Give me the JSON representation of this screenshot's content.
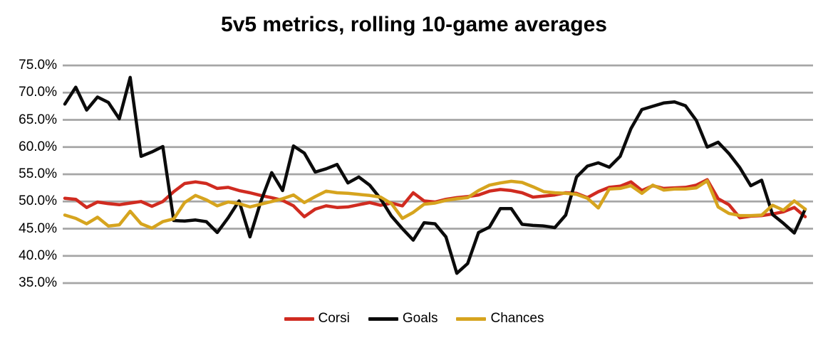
{
  "header": {
    "title": "5v5 metrics, rolling 10-game averages"
  },
  "chart_data": {
    "type": "line",
    "title": "5v5 metrics, rolling 10-game averages",
    "x_axis_labels": "none",
    "x_description": "rolling 10-game windows across the season (no tick labels shown)",
    "ylim": [
      35,
      75
    ],
    "grid": "horizontal gray lines every 5%",
    "legend_position": "bottom-center",
    "y_ticks": [
      {
        "value": 75,
        "label": "75.0%"
      },
      {
        "value": 70,
        "label": "70.0%"
      },
      {
        "value": 65,
        "label": "65.0%"
      },
      {
        "value": 60,
        "label": "60.0%"
      },
      {
        "value": 55,
        "label": "55.0%"
      },
      {
        "value": 50,
        "label": "50.0%"
      },
      {
        "value": 45,
        "label": "45.0%"
      },
      {
        "value": 40,
        "label": "40.0%"
      },
      {
        "value": 35,
        "label": "35.0%"
      }
    ],
    "series": [
      {
        "name": "Corsi",
        "color": "#D02B20",
        "values": [
          50.6,
          50.4,
          48.9,
          49.9,
          49.6,
          49.4,
          49.7,
          50.0,
          49.1,
          50.0,
          51.8,
          53.3,
          53.6,
          53.3,
          52.4,
          52.6,
          52.0,
          51.6,
          51.1,
          50.7,
          50.2,
          49.2,
          47.2,
          48.6,
          49.2,
          48.9,
          49.0,
          49.4,
          49.8,
          49.3,
          49.7,
          49.2,
          51.6,
          50.1,
          49.9,
          50.4,
          50.7,
          50.9,
          51.2,
          51.9,
          52.2,
          52.0,
          51.6,
          50.8,
          51.0,
          51.2,
          51.6,
          51.5,
          50.7,
          51.8,
          52.6,
          52.8,
          53.6,
          52.0,
          52.9,
          52.4,
          52.5,
          52.6,
          53.0,
          54.0,
          50.5,
          49.4,
          47.0,
          47.3,
          47.4,
          47.7,
          48.1,
          48.9,
          47.2
        ]
      },
      {
        "name": "Goals",
        "color": "#0B0B0B",
        "values": [
          67.9,
          71.0,
          66.8,
          69.2,
          68.2,
          65.2,
          72.8,
          58.3,
          59.1,
          60.1,
          46.5,
          46.4,
          46.6,
          46.3,
          44.3,
          47.0,
          50.1,
          43.5,
          50.0,
          55.3,
          52.0,
          60.2,
          58.9,
          55.4,
          56.0,
          56.8,
          53.4,
          54.5,
          53.0,
          50.5,
          47.3,
          45.0,
          42.9,
          46.1,
          45.9,
          43.5,
          36.8,
          38.6,
          44.3,
          45.3,
          48.7,
          48.7,
          45.8,
          45.6,
          45.5,
          45.2,
          47.5,
          54.5,
          56.5,
          57.1,
          56.3,
          58.3,
          63.4,
          66.9,
          67.5,
          68.1,
          68.3,
          67.6,
          64.9,
          60.0,
          60.9,
          58.8,
          56.2,
          52.9,
          53.9,
          47.6,
          46.0,
          44.2,
          48.6
        ]
      },
      {
        "name": "Chances",
        "color": "#D6A41E",
        "values": [
          47.5,
          46.9,
          45.9,
          47.1,
          45.5,
          45.7,
          48.2,
          45.9,
          45.1,
          46.3,
          46.8,
          49.8,
          51.1,
          50.3,
          49.2,
          49.9,
          49.6,
          49.0,
          49.5,
          50.0,
          50.5,
          51.2,
          49.8,
          50.9,
          51.9,
          51.6,
          51.5,
          51.3,
          51.1,
          50.8,
          49.6,
          46.9,
          48.0,
          49.5,
          49.7,
          50.2,
          50.5,
          50.7,
          52.0,
          53.0,
          53.4,
          53.7,
          53.5,
          52.7,
          51.8,
          51.6,
          51.5,
          51.3,
          50.6,
          48.8,
          52.3,
          52.4,
          52.9,
          51.5,
          53.0,
          52.1,
          52.3,
          52.3,
          52.5,
          53.8,
          49.0,
          47.8,
          47.4,
          47.4,
          47.5,
          49.3,
          48.4,
          50.1,
          48.6
        ]
      }
    ],
    "style": {
      "gridline_color": "#A6A6A6",
      "background": "#FFFFFF",
      "line_width": 4.5
    }
  }
}
